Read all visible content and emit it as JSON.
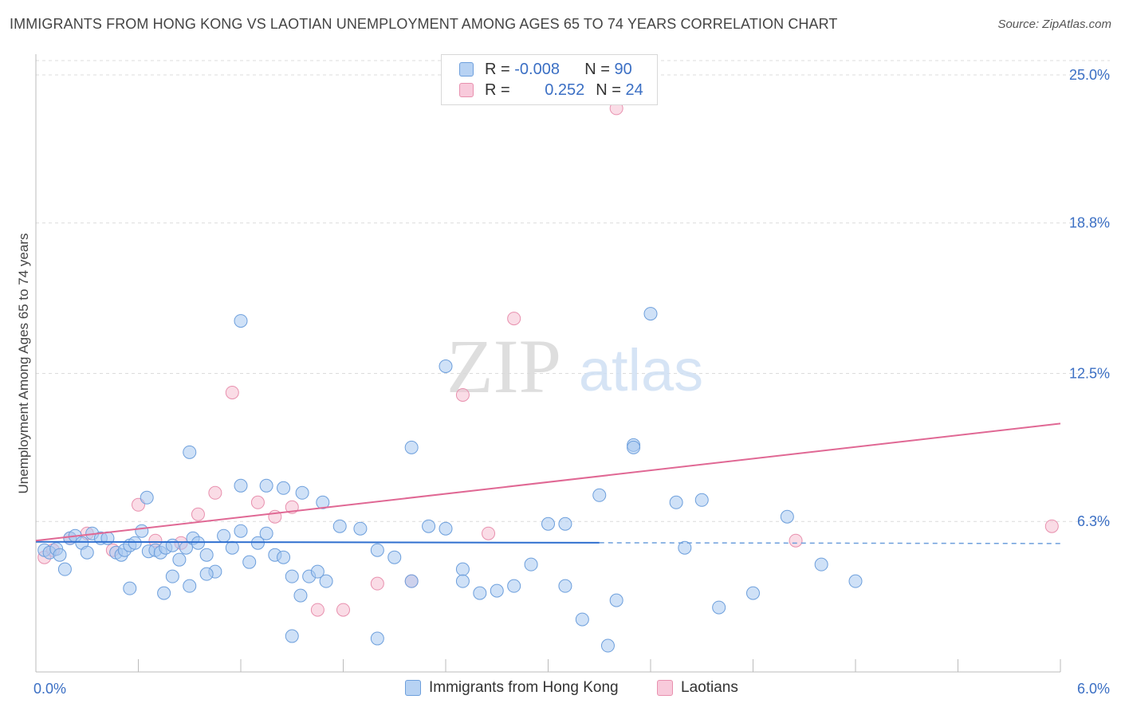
{
  "header": {
    "title": "IMMIGRANTS FROM HONG KONG VS LAOTIAN UNEMPLOYMENT AMONG AGES 65 TO 74 YEARS CORRELATION CHART",
    "source": "Source: ZipAtlas.com"
  },
  "watermark": {
    "zip": "ZIP",
    "atlas": "atlas"
  },
  "legend": {
    "rows": [
      {
        "r_label": "R = ",
        "r_value": "-0.008",
        "n_label": "N = ",
        "n_value": "90",
        "color": "#a8c8f0"
      },
      {
        "r_label": "R = ",
        "r_value": "0.252",
        "n_label": "N = ",
        "n_value": "24",
        "color": "#f5b8cc"
      }
    ]
  },
  "colors": {
    "blue_fill": "#a8c8f0",
    "blue_stroke": "#6d9fdc",
    "blue_line": "#2f6fcf",
    "pink_fill": "#f5c0d2",
    "pink_stroke": "#e890ae",
    "pink_line": "#e06894",
    "tick_text": "#3b6fc4",
    "grid": "#dcdcdc"
  },
  "chart_data": {
    "type": "scatter",
    "title": "IMMIGRANTS FROM HONG KONG VS LAOTIAN UNEMPLOYMENT AMONG AGES 65 TO 74 YEARS CORRELATION CHART",
    "xlabel": "",
    "ylabel": "Unemployment Among Ages 65 to 74 years",
    "xlim": [
      0,
      6.0
    ],
    "ylim": [
      0,
      25.6
    ],
    "x_tick_labels": [
      "0.0%",
      "6.0%"
    ],
    "y_ticks": [
      {
        "value": 6.3,
        "label": "6.3%"
      },
      {
        "value": 12.5,
        "label": "12.5%"
      },
      {
        "value": 18.8,
        "label": "18.8%"
      },
      {
        "value": 25.0,
        "label": "25.0%"
      }
    ],
    "grid": true,
    "legend_position": "bottom",
    "series": [
      {
        "name": "Immigrants from Hong Kong",
        "color": "#a8c8f0",
        "trend": {
          "x": [
            0.0,
            3.3
          ],
          "y": [
            5.45,
            5.41
          ],
          "dashed_to": 6.0
        },
        "points": [
          [
            0.05,
            5.1
          ],
          [
            0.08,
            5.0
          ],
          [
            0.12,
            5.15
          ],
          [
            0.14,
            4.9
          ],
          [
            0.17,
            4.3
          ],
          [
            0.2,
            5.6
          ],
          [
            0.23,
            5.7
          ],
          [
            0.27,
            5.4
          ],
          [
            0.3,
            5.0
          ],
          [
            0.33,
            5.8
          ],
          [
            0.38,
            5.6
          ],
          [
            0.42,
            5.6
          ],
          [
            0.47,
            5.0
          ],
          [
            0.5,
            4.9
          ],
          [
            0.52,
            5.1
          ],
          [
            0.55,
            5.3
          ],
          [
            0.58,
            5.4
          ],
          [
            0.62,
            5.9
          ],
          [
            0.66,
            5.05
          ],
          [
            0.7,
            5.1
          ],
          [
            0.73,
            5.0
          ],
          [
            0.76,
            5.2
          ],
          [
            0.8,
            5.3
          ],
          [
            0.84,
            4.7
          ],
          [
            0.88,
            5.2
          ],
          [
            0.92,
            5.6
          ],
          [
            0.95,
            5.4
          ],
          [
            1.0,
            4.9
          ],
          [
            1.05,
            4.2
          ],
          [
            1.1,
            5.7
          ],
          [
            1.15,
            5.2
          ],
          [
            1.2,
            5.9
          ],
          [
            1.25,
            4.6
          ],
          [
            1.3,
            5.4
          ],
          [
            1.35,
            5.8
          ],
          [
            1.4,
            4.9
          ],
          [
            1.45,
            4.8
          ],
          [
            1.5,
            4.0
          ],
          [
            1.55,
            3.2
          ],
          [
            1.6,
            4.0
          ],
          [
            1.65,
            4.2
          ],
          [
            1.7,
            3.8
          ],
          [
            0.8,
            4.0
          ],
          [
            0.9,
            3.6
          ],
          [
            1.0,
            4.1
          ],
          [
            0.75,
            3.3
          ],
          [
            0.55,
            3.5
          ],
          [
            0.65,
            7.3
          ],
          [
            1.2,
            7.8
          ],
          [
            1.35,
            7.8
          ],
          [
            1.45,
            7.7
          ],
          [
            1.56,
            7.5
          ],
          [
            1.68,
            7.1
          ],
          [
            1.78,
            6.1
          ],
          [
            1.9,
            6.0
          ],
          [
            2.0,
            5.1
          ],
          [
            2.1,
            4.8
          ],
          [
            2.2,
            3.8
          ],
          [
            2.3,
            6.1
          ],
          [
            2.4,
            6.0
          ],
          [
            2.5,
            4.3
          ],
          [
            2.6,
            3.3
          ],
          [
            2.7,
            3.4
          ],
          [
            2.8,
            3.6
          ],
          [
            2.9,
            4.5
          ],
          [
            3.0,
            6.2
          ],
          [
            3.1,
            3.6
          ],
          [
            3.2,
            2.2
          ],
          [
            3.3,
            7.4
          ],
          [
            3.4,
            3.0
          ],
          [
            3.5,
            9.5
          ],
          [
            3.6,
            15.0
          ],
          [
            3.8,
            5.2
          ],
          [
            3.9,
            7.2
          ],
          [
            4.0,
            2.7
          ],
          [
            4.2,
            3.3
          ],
          [
            4.4,
            6.5
          ],
          [
            4.6,
            4.5
          ],
          [
            4.8,
            3.8
          ],
          [
            2.2,
            9.4
          ],
          [
            2.5,
            3.8
          ],
          [
            3.1,
            6.2
          ],
          [
            3.5,
            9.4
          ],
          [
            3.75,
            7.1
          ],
          [
            0.9,
            9.2
          ],
          [
            1.2,
            14.7
          ],
          [
            2.4,
            12.8
          ],
          [
            1.5,
            1.5
          ],
          [
            2.0,
            1.4
          ],
          [
            3.35,
            1.1
          ]
        ]
      },
      {
        "name": "Laotians",
        "color": "#f5c0d2",
        "trend": {
          "x": [
            0.0,
            6.0
          ],
          "y": [
            5.5,
            10.4
          ]
        },
        "points": [
          [
            0.05,
            4.8
          ],
          [
            0.1,
            5.1
          ],
          [
            0.2,
            5.6
          ],
          [
            0.3,
            5.8
          ],
          [
            0.45,
            5.1
          ],
          [
            0.6,
            7.0
          ],
          [
            0.7,
            5.5
          ],
          [
            0.85,
            5.4
          ],
          [
            0.95,
            6.6
          ],
          [
            1.05,
            7.5
          ],
          [
            1.15,
            11.7
          ],
          [
            1.3,
            7.1
          ],
          [
            1.4,
            6.5
          ],
          [
            1.5,
            6.9
          ],
          [
            1.65,
            2.6
          ],
          [
            1.8,
            2.6
          ],
          [
            2.0,
            3.7
          ],
          [
            2.2,
            3.8
          ],
          [
            2.5,
            11.6
          ],
          [
            2.65,
            5.8
          ],
          [
            2.8,
            14.8
          ],
          [
            3.4,
            23.6
          ],
          [
            4.45,
            5.5
          ],
          [
            5.95,
            6.1
          ]
        ]
      }
    ]
  },
  "bottom_legend": {
    "items": [
      {
        "label": "Immigrants from Hong Kong",
        "color": "#a8c8f0"
      },
      {
        "label": "Laotians",
        "color": "#f5c0d2"
      }
    ]
  }
}
